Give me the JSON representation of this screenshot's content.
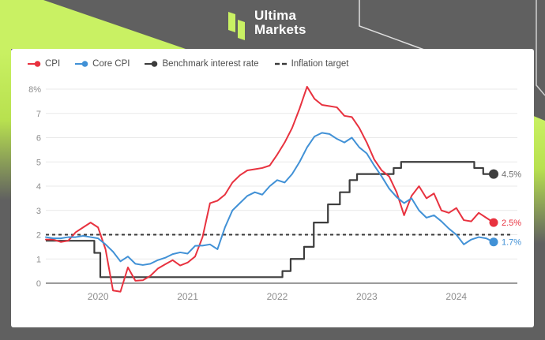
{
  "brand": {
    "line1": "Ultima",
    "line2": "Markets"
  },
  "colors": {
    "background_gray": "#606060",
    "accent_green": "#c9f163",
    "accent_green_deep": "#b8e14f",
    "cpi_red": "#e8323f",
    "core_cpi_blue": "#4191d6",
    "benchmark_dark": "#3d3d3d",
    "target_dash": "#3a3a3a",
    "grid": "#e9e9e9",
    "zero_line": "#9b9b9b",
    "axis_text": "#8d8d8d",
    "end_label_gray": "#6b6b6b"
  },
  "legend": {
    "items": [
      {
        "label": "CPI",
        "color": "#e8323f",
        "marker": "line-dot"
      },
      {
        "label": "Core CPI",
        "color": "#4191d6",
        "marker": "line-dot"
      },
      {
        "label": "Benchmark interest rate",
        "color": "#3d3d3d",
        "marker": "line-dot"
      },
      {
        "label": "Inflation target",
        "color": "#3a3a3a",
        "marker": "dashes"
      }
    ]
  },
  "chart_data": {
    "type": "line",
    "title": "",
    "x_unit": "monthly points, Jun 2019 - Jun 2024",
    "x_ticks": [
      {
        "label": "2020",
        "month": 7
      },
      {
        "label": "2021",
        "month": 19
      },
      {
        "label": "2022",
        "month": 31
      },
      {
        "label": "2023",
        "month": 43
      },
      {
        "label": "2024",
        "month": 55
      }
    ],
    "y_ticks": [
      {
        "label": "8%",
        "value": 8
      },
      {
        "label": "7",
        "value": 7
      },
      {
        "label": "6",
        "value": 6
      },
      {
        "label": "5",
        "value": 5
      },
      {
        "label": "4",
        "value": 4
      },
      {
        "label": "3",
        "value": 3
      },
      {
        "label": "2",
        "value": 2
      },
      {
        "label": "1",
        "value": 1
      },
      {
        "label": "0",
        "value": 0
      }
    ],
    "ylim": [
      -0.6,
      8.5
    ],
    "inflation_target_value": 2,
    "series": [
      {
        "name": "CPI",
        "color": "#e8323f",
        "end_label": "2.5%",
        "monthly_values": [
          1.8,
          1.8,
          1.7,
          1.75,
          2.1,
          2.3,
          2.5,
          2.3,
          1.4,
          -0.3,
          -0.35,
          0.65,
          0.1,
          0.12,
          0.3,
          0.6,
          0.78,
          0.95,
          0.73,
          0.85,
          1.1,
          1.9,
          3.3,
          3.4,
          3.65,
          4.15,
          4.45,
          4.65,
          4.7,
          4.75,
          4.85,
          5.3,
          5.8,
          6.4,
          7.2,
          8.1,
          7.6,
          7.35,
          7.3,
          7.25,
          6.9,
          6.85,
          6.4,
          5.8,
          5.1,
          4.65,
          4.4,
          3.75,
          2.8,
          3.6,
          4.0,
          3.5,
          3.7,
          3.0,
          2.9,
          3.1,
          2.6,
          2.55,
          2.9,
          2.7,
          2.5
        ]
      },
      {
        "name": "Core CPI",
        "color": "#4191d6",
        "end_label": "1.7%",
        "monthly_values": [
          1.9,
          1.85,
          1.85,
          1.9,
          1.9,
          1.95,
          1.9,
          1.85,
          1.6,
          1.3,
          0.9,
          1.1,
          0.8,
          0.75,
          0.8,
          0.95,
          1.05,
          1.2,
          1.27,
          1.22,
          1.54,
          1.55,
          1.6,
          1.4,
          2.3,
          3.0,
          3.3,
          3.6,
          3.75,
          3.65,
          4.0,
          4.25,
          4.15,
          4.5,
          5.0,
          5.6,
          6.05,
          6.2,
          6.15,
          5.95,
          5.8,
          6.0,
          5.6,
          5.35,
          4.85,
          4.4,
          3.9,
          3.55,
          3.3,
          3.5,
          3.0,
          2.7,
          2.8,
          2.55,
          2.25,
          2.0,
          1.6,
          1.8,
          1.9,
          1.85,
          1.7
        ]
      },
      {
        "name": "Benchmark interest rate",
        "color": "#3d3d3d",
        "end_label": "4.5%",
        "step_points": [
          [
            0,
            1.75
          ],
          [
            6.5,
            1.75
          ],
          [
            6.5,
            1.25
          ],
          [
            7.3,
            1.25
          ],
          [
            7.3,
            0.25
          ],
          [
            31.7,
            0.25
          ],
          [
            31.7,
            0.5
          ],
          [
            32.8,
            0.5
          ],
          [
            32.8,
            1.0
          ],
          [
            34.6,
            1.0
          ],
          [
            34.6,
            1.5
          ],
          [
            35.9,
            1.5
          ],
          [
            35.9,
            2.5
          ],
          [
            37.8,
            2.5
          ],
          [
            37.8,
            3.25
          ],
          [
            39.4,
            3.25
          ],
          [
            39.4,
            3.75
          ],
          [
            40.7,
            3.75
          ],
          [
            40.7,
            4.25
          ],
          [
            41.7,
            4.25
          ],
          [
            41.7,
            4.5
          ],
          [
            46.6,
            4.5
          ],
          [
            46.6,
            4.75
          ],
          [
            47.6,
            4.75
          ],
          [
            47.6,
            5.0
          ],
          [
            57.4,
            5.0
          ],
          [
            57.4,
            4.75
          ],
          [
            58.6,
            4.75
          ],
          [
            58.6,
            4.5
          ],
          [
            60,
            4.5
          ]
        ]
      },
      {
        "name": "Inflation target",
        "color": "#3a3a3a",
        "dashed": true,
        "value": 2
      }
    ],
    "legend_position": "top-left",
    "grid": true
  }
}
